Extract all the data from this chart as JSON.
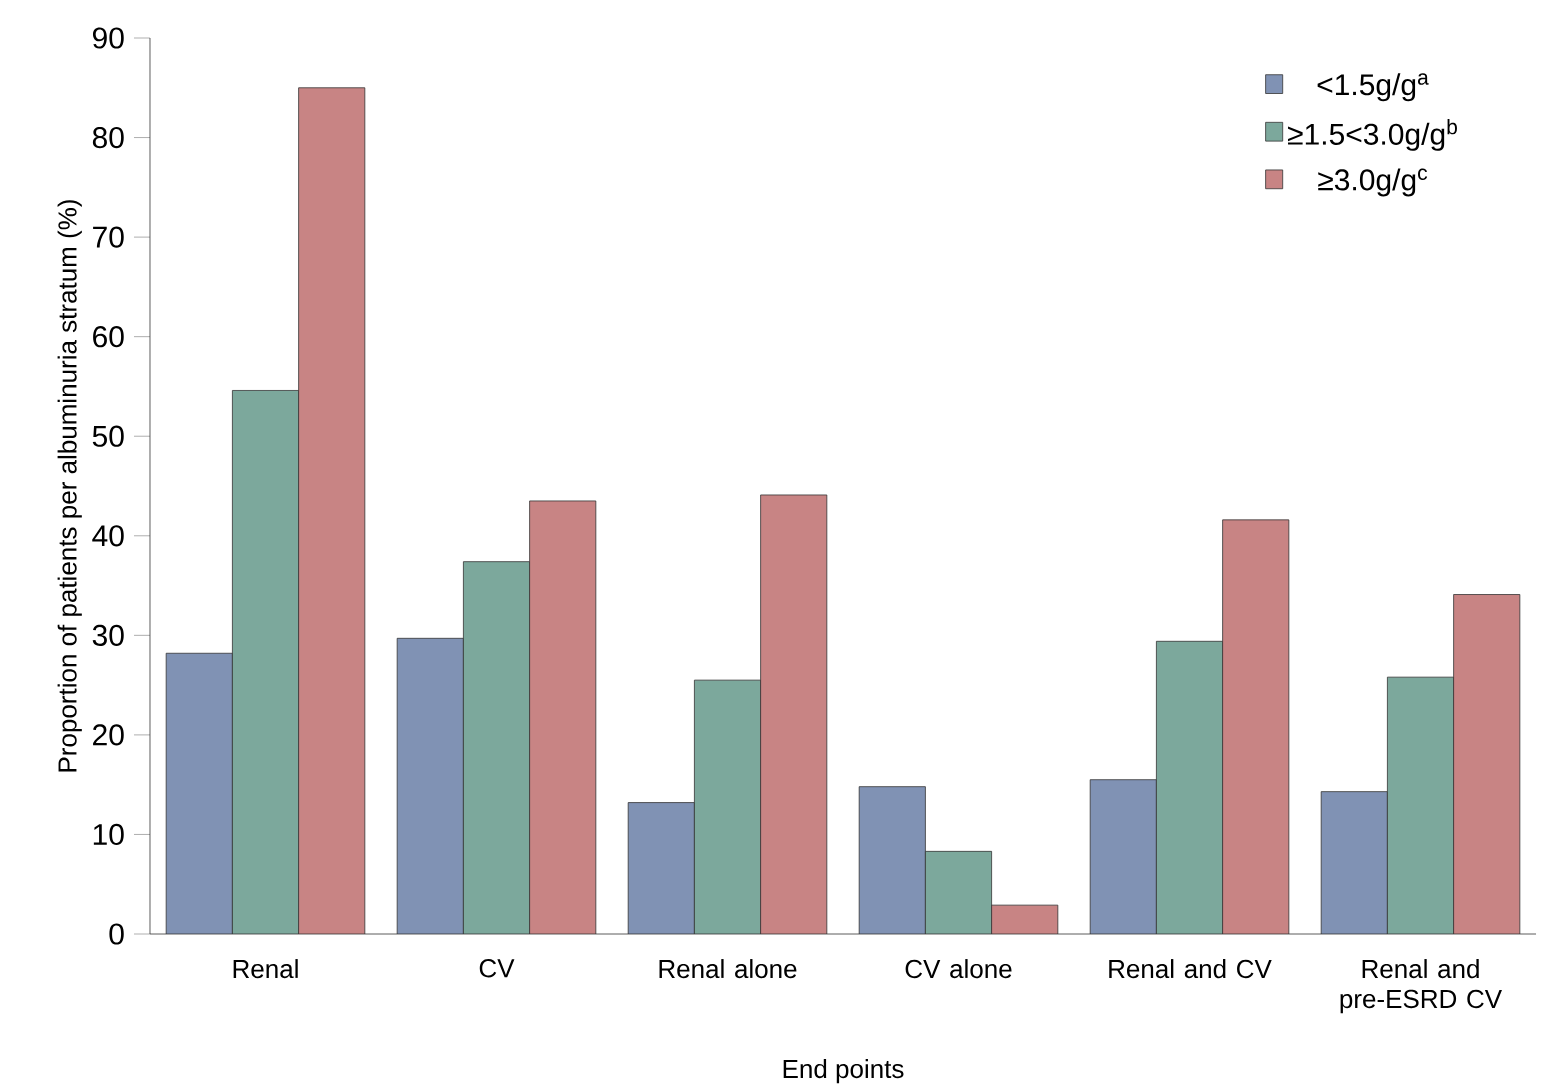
{
  "chart_data": {
    "type": "bar",
    "xlabel": "End points",
    "ylabel": "Proportion of patients per albuminuria stratum (%)",
    "categories": [
      "Renal",
      "CV",
      "Renal alone",
      "CV alone",
      "Renal and CV",
      "Renal and pre-ESRD CV"
    ],
    "series": [
      {
        "name": "<1.5g/g$^{a}$",
        "color": "#8092b4",
        "values": [
          28.2,
          29.7,
          13.2,
          14.8,
          15.5,
          14.3
        ]
      },
      {
        "name": "≥1.5<3.0g/g$^{b}$",
        "color": "#7ca89c",
        "values": [
          54.6,
          37.4,
          25.5,
          8.3,
          29.4,
          25.8
        ]
      },
      {
        "name": "≥3.0g/g$^{c}$",
        "color": "#c88484",
        "values": [
          85,
          43.5,
          44.1,
          2.9,
          41.6,
          34.1
        ]
      }
    ],
    "ylim": [
      0,
      90
    ],
    "yticks": [
      0,
      10,
      20,
      30,
      40,
      50,
      60,
      70,
      80,
      90
    ],
    "legend": "top right",
    "grid": false
  }
}
